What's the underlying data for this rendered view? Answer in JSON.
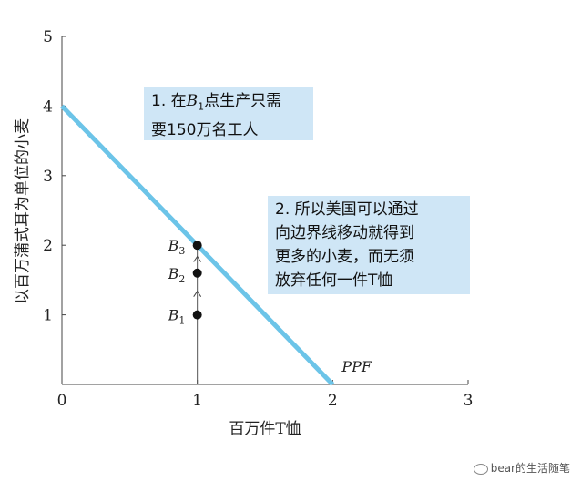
{
  "chart_data": {
    "type": "line",
    "xlabel": "百万件T恤",
    "ylabel": "以百万蒲式耳为单位的小麦",
    "xlim": [
      0,
      3
    ],
    "ylim": [
      0,
      5
    ],
    "x_ticks": [
      "0",
      "1",
      "2",
      "3"
    ],
    "y_ticks": [
      "1",
      "2",
      "3",
      "4",
      "5"
    ],
    "series": [
      {
        "label": "PPF",
        "color": "#6cc4e8",
        "x": [
          0,
          2
        ],
        "y": [
          4,
          0
        ]
      }
    ],
    "points": [
      {
        "name": "B",
        "sub": "1",
        "x": 1,
        "y": 1
      },
      {
        "name": "B",
        "sub": "2",
        "x": 1,
        "y": 1.6
      },
      {
        "name": "B",
        "sub": "3",
        "x": 1,
        "y": 2
      }
    ],
    "annotations": [
      {
        "id": "note1",
        "pre": "1. 在",
        "var": "B",
        "sub": "1",
        "post": "点生产只需",
        "line2": "要150万名工人"
      },
      {
        "id": "note2",
        "lines": [
          "2. 所以美国可以通过",
          "向边界线移动就得到",
          "更多的小麦，而无须",
          "放弃任何一件T恤"
        ]
      }
    ],
    "grid": false
  },
  "watermark": "bear的生活随笔",
  "colors": {
    "callout_bg": "#cfe6f6",
    "ppf": "#6cc4e8"
  }
}
